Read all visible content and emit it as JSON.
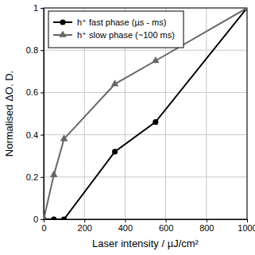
{
  "chart_data": {
    "type": "line",
    "x_label": "Laser intensity  / µJ/cm²",
    "y_label": "Normalised ΔO. D.",
    "x": [
      0,
      50,
      100,
      350,
      550,
      1000
    ],
    "series": [
      {
        "name": "h⁺ fast phase (µs - ms)",
        "color": "#000000",
        "marker": "circle",
        "line_style": "solid",
        "values": [
          0,
          0,
          0,
          0.32,
          0.46,
          1
        ]
      },
      {
        "name": "h⁺ slow phase (~100 ms)",
        "color": "#666666",
        "marker": "triangle",
        "line_style": "solid",
        "values": [
          0,
          0.21,
          0.38,
          0.64,
          0.75,
          1
        ]
      }
    ],
    "xlim": [
      0,
      1000
    ],
    "xticks": [
      0,
      200,
      400,
      600,
      800,
      1000
    ],
    "ylim": [
      0,
      1
    ],
    "yticks": [
      0,
      0.2,
      0.4,
      0.6,
      0.8,
      1
    ],
    "grid": true,
    "legend": "upper left"
  }
}
